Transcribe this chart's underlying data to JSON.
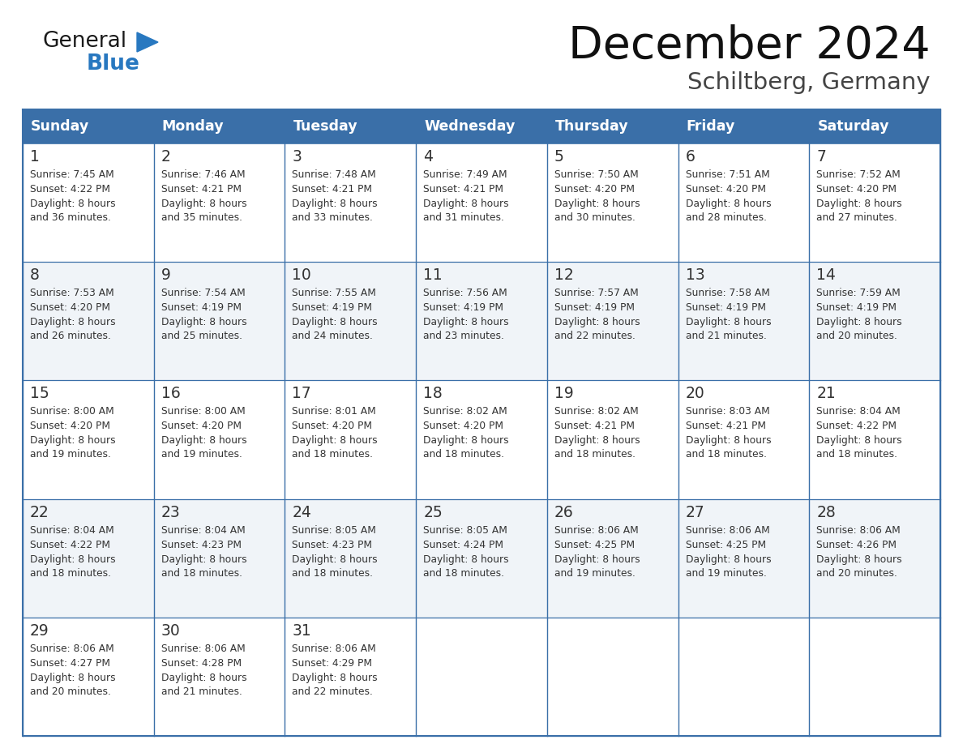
{
  "title": "December 2024",
  "subtitle": "Schiltberg, Germany",
  "header_color": "#3a6fa8",
  "header_text_color": "#ffffff",
  "day_names": [
    "Sunday",
    "Monday",
    "Tuesday",
    "Wednesday",
    "Thursday",
    "Friday",
    "Saturday"
  ],
  "row_colors": [
    "#ffffff",
    "#f0f4f8"
  ],
  "border_color": "#3a6fa8",
  "inner_border_color": "#3a6fa8",
  "text_color": "#333333",
  "days": [
    {
      "day": 1,
      "col": 0,
      "row": 0,
      "sunrise": "7:45 AM",
      "sunset": "4:22 PM",
      "daylight_suffix": "36 minutes."
    },
    {
      "day": 2,
      "col": 1,
      "row": 0,
      "sunrise": "7:46 AM",
      "sunset": "4:21 PM",
      "daylight_suffix": "35 minutes."
    },
    {
      "day": 3,
      "col": 2,
      "row": 0,
      "sunrise": "7:48 AM",
      "sunset": "4:21 PM",
      "daylight_suffix": "33 minutes."
    },
    {
      "day": 4,
      "col": 3,
      "row": 0,
      "sunrise": "7:49 AM",
      "sunset": "4:21 PM",
      "daylight_suffix": "31 minutes."
    },
    {
      "day": 5,
      "col": 4,
      "row": 0,
      "sunrise": "7:50 AM",
      "sunset": "4:20 PM",
      "daylight_suffix": "30 minutes."
    },
    {
      "day": 6,
      "col": 5,
      "row": 0,
      "sunrise": "7:51 AM",
      "sunset": "4:20 PM",
      "daylight_suffix": "28 minutes."
    },
    {
      "day": 7,
      "col": 6,
      "row": 0,
      "sunrise": "7:52 AM",
      "sunset": "4:20 PM",
      "daylight_suffix": "27 minutes."
    },
    {
      "day": 8,
      "col": 0,
      "row": 1,
      "sunrise": "7:53 AM",
      "sunset": "4:20 PM",
      "daylight_suffix": "26 minutes."
    },
    {
      "day": 9,
      "col": 1,
      "row": 1,
      "sunrise": "7:54 AM",
      "sunset": "4:19 PM",
      "daylight_suffix": "25 minutes."
    },
    {
      "day": 10,
      "col": 2,
      "row": 1,
      "sunrise": "7:55 AM",
      "sunset": "4:19 PM",
      "daylight_suffix": "24 minutes."
    },
    {
      "day": 11,
      "col": 3,
      "row": 1,
      "sunrise": "7:56 AM",
      "sunset": "4:19 PM",
      "daylight_suffix": "23 minutes."
    },
    {
      "day": 12,
      "col": 4,
      "row": 1,
      "sunrise": "7:57 AM",
      "sunset": "4:19 PM",
      "daylight_suffix": "22 minutes."
    },
    {
      "day": 13,
      "col": 5,
      "row": 1,
      "sunrise": "7:58 AM",
      "sunset": "4:19 PM",
      "daylight_suffix": "21 minutes."
    },
    {
      "day": 14,
      "col": 6,
      "row": 1,
      "sunrise": "7:59 AM",
      "sunset": "4:19 PM",
      "daylight_suffix": "20 minutes."
    },
    {
      "day": 15,
      "col": 0,
      "row": 2,
      "sunrise": "8:00 AM",
      "sunset": "4:20 PM",
      "daylight_suffix": "19 minutes."
    },
    {
      "day": 16,
      "col": 1,
      "row": 2,
      "sunrise": "8:00 AM",
      "sunset": "4:20 PM",
      "daylight_suffix": "19 minutes."
    },
    {
      "day": 17,
      "col": 2,
      "row": 2,
      "sunrise": "8:01 AM",
      "sunset": "4:20 PM",
      "daylight_suffix": "18 minutes."
    },
    {
      "day": 18,
      "col": 3,
      "row": 2,
      "sunrise": "8:02 AM",
      "sunset": "4:20 PM",
      "daylight_suffix": "18 minutes."
    },
    {
      "day": 19,
      "col": 4,
      "row": 2,
      "sunrise": "8:02 AM",
      "sunset": "4:21 PM",
      "daylight_suffix": "18 minutes."
    },
    {
      "day": 20,
      "col": 5,
      "row": 2,
      "sunrise": "8:03 AM",
      "sunset": "4:21 PM",
      "daylight_suffix": "18 minutes."
    },
    {
      "day": 21,
      "col": 6,
      "row": 2,
      "sunrise": "8:04 AM",
      "sunset": "4:22 PM",
      "daylight_suffix": "18 minutes."
    },
    {
      "day": 22,
      "col": 0,
      "row": 3,
      "sunrise": "8:04 AM",
      "sunset": "4:22 PM",
      "daylight_suffix": "18 minutes."
    },
    {
      "day": 23,
      "col": 1,
      "row": 3,
      "sunrise": "8:04 AM",
      "sunset": "4:23 PM",
      "daylight_suffix": "18 minutes."
    },
    {
      "day": 24,
      "col": 2,
      "row": 3,
      "sunrise": "8:05 AM",
      "sunset": "4:23 PM",
      "daylight_suffix": "18 minutes."
    },
    {
      "day": 25,
      "col": 3,
      "row": 3,
      "sunrise": "8:05 AM",
      "sunset": "4:24 PM",
      "daylight_suffix": "18 minutes."
    },
    {
      "day": 26,
      "col": 4,
      "row": 3,
      "sunrise": "8:06 AM",
      "sunset": "4:25 PM",
      "daylight_suffix": "19 minutes."
    },
    {
      "day": 27,
      "col": 5,
      "row": 3,
      "sunrise": "8:06 AM",
      "sunset": "4:25 PM",
      "daylight_suffix": "19 minutes."
    },
    {
      "day": 28,
      "col": 6,
      "row": 3,
      "sunrise": "8:06 AM",
      "sunset": "4:26 PM",
      "daylight_suffix": "20 minutes."
    },
    {
      "day": 29,
      "col": 0,
      "row": 4,
      "sunrise": "8:06 AM",
      "sunset": "4:27 PM",
      "daylight_suffix": "20 minutes."
    },
    {
      "day": 30,
      "col": 1,
      "row": 4,
      "sunrise": "8:06 AM",
      "sunset": "4:28 PM",
      "daylight_suffix": "21 minutes."
    },
    {
      "day": 31,
      "col": 2,
      "row": 4,
      "sunrise": "8:06 AM",
      "sunset": "4:29 PM",
      "daylight_suffix": "22 minutes."
    }
  ],
  "logo_general_color": "#1a1a1a",
  "logo_blue_color": "#2878c0",
  "logo_triangle_color": "#2878c0",
  "fig_width": 11.88,
  "fig_height": 9.18,
  "dpi": 100
}
